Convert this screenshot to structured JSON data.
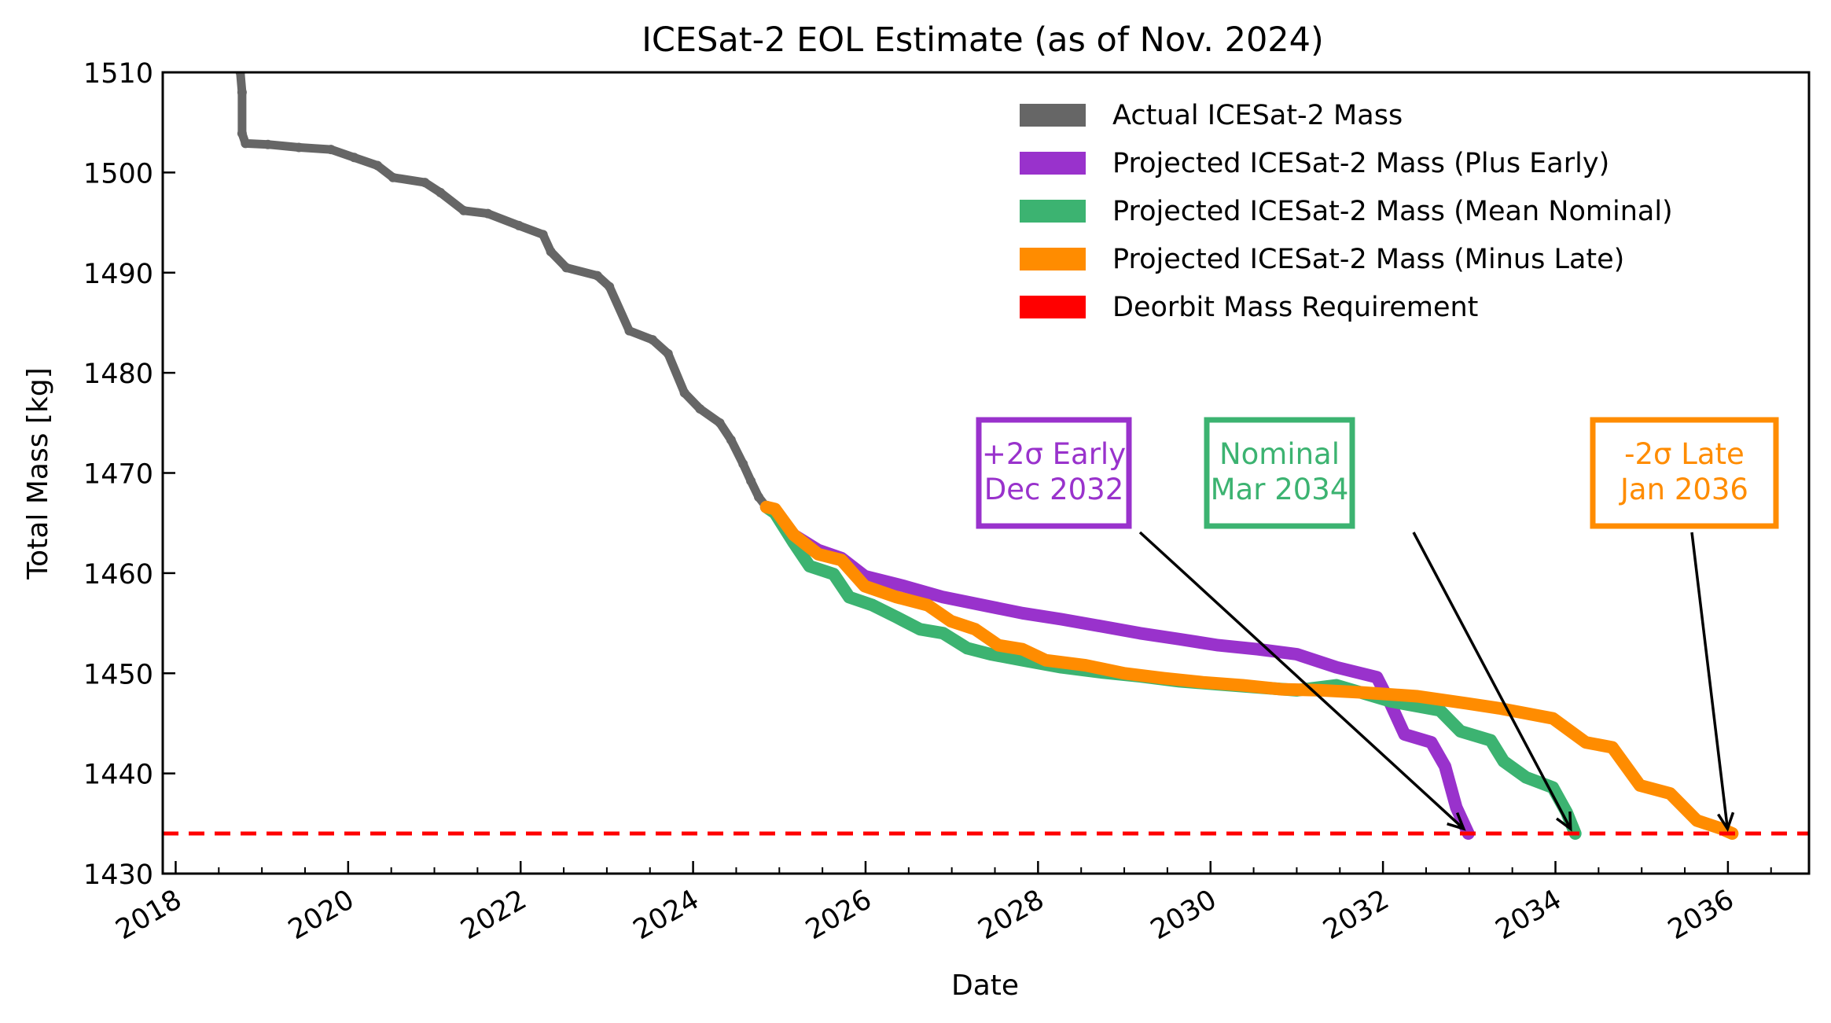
{
  "chart_data": {
    "type": "line",
    "title": "ICESat-2 EOL Estimate (as of Nov. 2024)",
    "xlabel": "Date",
    "ylabel": "Total Mass [kg]",
    "xlim": [
      2017.85,
      2036.94
    ],
    "ylim": [
      1430,
      1510
    ],
    "x_major_ticks": [
      2018,
      2020,
      2022,
      2024,
      2026,
      2028,
      2030,
      2032,
      2034,
      2036
    ],
    "x_tick_labels": [
      "2018",
      "2020",
      "2022",
      "2024",
      "2026",
      "2028",
      "2030",
      "2032",
      "2034",
      "2036"
    ],
    "x_minor_tick_step": 0.5,
    "y_ticks": [
      1430,
      1440,
      1450,
      1460,
      1470,
      1480,
      1490,
      1500,
      1510
    ],
    "y_tick_labels": [
      "1430",
      "1440",
      "1450",
      "1460",
      "1470",
      "1480",
      "1490",
      "1500",
      "1510"
    ],
    "grid": false,
    "legend_position": "top-right",
    "series": [
      {
        "name": "Actual ICESat-2 Mass",
        "color": "#666666",
        "style": "solid-markers",
        "x": [
          2018.75,
          2018.77,
          2018.77,
          2018.81,
          2019.07,
          2019.43,
          2019.8,
          2020.07,
          2020.34,
          2020.52,
          2020.89,
          2021.07,
          2021.34,
          2021.62,
          2021.98,
          2022.26,
          2022.35,
          2022.53,
          2022.89,
          2023.03,
          2023.26,
          2023.53,
          2023.71,
          2023.9,
          2024.08,
          2024.31,
          2024.44,
          2024.58,
          2024.67,
          2024.76,
          2024.85
        ],
        "y": [
          1510.0,
          1508.0,
          1503.9,
          1502.9,
          1502.8,
          1502.5,
          1502.3,
          1501.5,
          1500.7,
          1499.5,
          1499.0,
          1498.0,
          1496.2,
          1495.9,
          1494.7,
          1493.8,
          1492.1,
          1490.5,
          1489.7,
          1488.6,
          1484.2,
          1483.3,
          1481.9,
          1478.0,
          1476.4,
          1475.0,
          1473.3,
          1470.9,
          1469.2,
          1467.6,
          1466.6
        ]
      },
      {
        "name": "Projected ICESat-2 Mass (Plus Early)",
        "color": "#9932CC",
        "style": "solid",
        "x": [
          2024.85,
          2024.95,
          2025.17,
          2025.45,
          2025.72,
          2025.99,
          2026.45,
          2026.9,
          2027.36,
          2027.82,
          2028.27,
          2028.73,
          2029.18,
          2029.64,
          2030.09,
          2030.55,
          2031.0,
          2031.46,
          2031.93,
          2032.09,
          2032.25,
          2032.56,
          2032.72,
          2032.85,
          2032.99
        ],
        "y": [
          1466.6,
          1466.2,
          1463.8,
          1462.3,
          1461.5,
          1459.7,
          1458.7,
          1457.6,
          1456.8,
          1456.0,
          1455.4,
          1454.7,
          1454.0,
          1453.4,
          1452.8,
          1452.4,
          1451.9,
          1450.6,
          1449.6,
          1446.9,
          1443.9,
          1443.1,
          1440.7,
          1436.6,
          1434.0
        ]
      },
      {
        "name": "Projected ICESat-2 Mass (Mean Nominal)",
        "color": "#3CB371",
        "style": "solid",
        "x": [
          2024.85,
          2024.95,
          2025.17,
          2025.35,
          2025.63,
          2025.81,
          2026.08,
          2026.36,
          2026.63,
          2026.9,
          2027.18,
          2027.45,
          2027.82,
          2028.27,
          2028.73,
          2029.18,
          2029.64,
          2030.09,
          2030.55,
          2031.0,
          2031.46,
          2032.09,
          2032.66,
          2032.9,
          2033.25,
          2033.4,
          2033.66,
          2033.97,
          2034.13,
          2034.23
        ],
        "y": [
          1466.6,
          1466.0,
          1463.0,
          1460.7,
          1459.9,
          1457.6,
          1456.8,
          1455.6,
          1454.4,
          1454.0,
          1452.5,
          1451.9,
          1451.3,
          1450.6,
          1450.1,
          1449.7,
          1449.2,
          1448.9,
          1448.6,
          1448.3,
          1448.8,
          1447.2,
          1446.3,
          1444.2,
          1443.3,
          1441.2,
          1439.6,
          1438.6,
          1436.1,
          1434.0
        ]
      },
      {
        "name": "Projected ICESat-2 Mass (Minus Late)",
        "color": "#FF8C00",
        "style": "solid",
        "x": [
          2024.85,
          2024.95,
          2025.17,
          2025.45,
          2025.72,
          2025.99,
          2026.36,
          2026.72,
          2026.99,
          2027.27,
          2027.54,
          2027.82,
          2028.09,
          2028.55,
          2029.0,
          2029.46,
          2029.91,
          2030.37,
          2030.82,
          2031.28,
          2031.74,
          2032.4,
          2032.97,
          2033.35,
          2033.97,
          2034.35,
          2034.66,
          2034.98,
          2035.33,
          2035.64,
          2035.92,
          2036.05
        ],
        "y": [
          1466.6,
          1466.4,
          1463.8,
          1461.9,
          1461.3,
          1458.7,
          1457.6,
          1456.8,
          1455.2,
          1454.4,
          1452.8,
          1452.4,
          1451.3,
          1450.8,
          1450.0,
          1449.5,
          1449.1,
          1448.8,
          1448.4,
          1448.3,
          1448.1,
          1447.7,
          1447.0,
          1446.5,
          1445.5,
          1443.1,
          1442.6,
          1438.8,
          1438.0,
          1435.3,
          1434.5,
          1434.0
        ]
      },
      {
        "name": "Deorbit Mass Requirement",
        "color": "#FF0000",
        "style": "dashed",
        "y_constant": 1434
      }
    ],
    "annotations": [
      {
        "line1": "+2σ Early",
        "line2": "Dec 2032",
        "color": "#9932CC",
        "points_to": {
          "x": 2032.99,
          "y": 1434
        }
      },
      {
        "line1": "Nominal",
        "line2": "Mar 2034",
        "color": "#3CB371",
        "points_to": {
          "x": 2034.23,
          "y": 1434
        }
      },
      {
        "line1": "-2σ Late",
        "line2": "Jan 2036",
        "color": "#FF8C00",
        "points_to": {
          "x": 2036.05,
          "y": 1434
        }
      }
    ]
  }
}
